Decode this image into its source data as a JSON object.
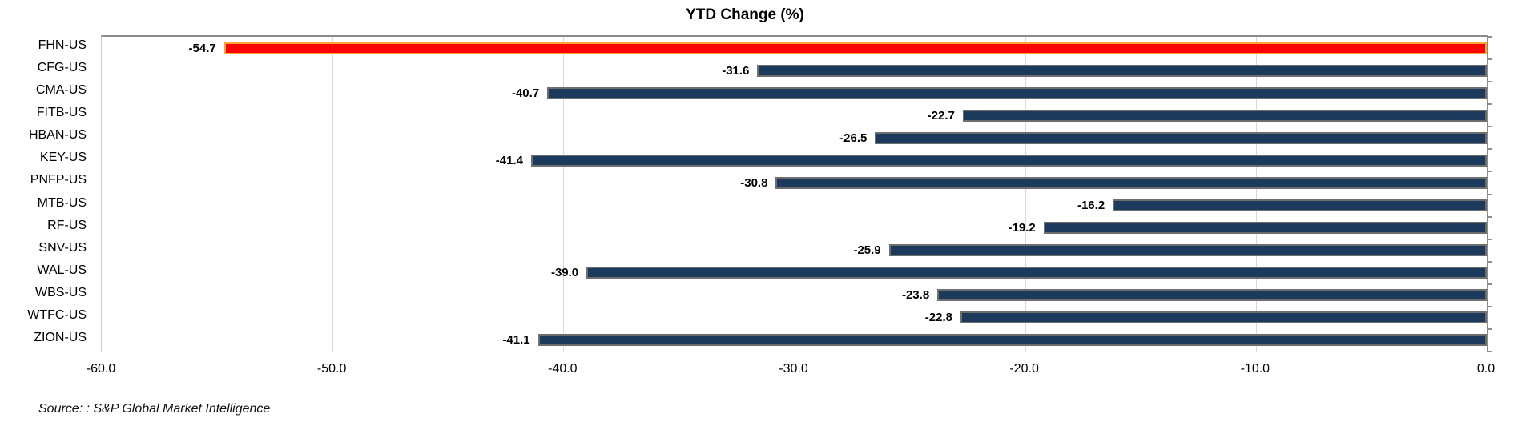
{
  "chart_data": {
    "type": "bar",
    "orientation": "horizontal",
    "title": "YTD Change (%)",
    "categories": [
      "FHN-US",
      "CFG-US",
      "CMA-US",
      "FITB-US",
      "HBAN-US",
      "KEY-US",
      "PNFP-US",
      "MTB-US",
      "RF-US",
      "SNV-US",
      "WAL-US",
      "WBS-US",
      "WTFC-US",
      "ZION-US"
    ],
    "values": [
      -54.7,
      -31.6,
      -40.7,
      -22.7,
      -26.5,
      -41.4,
      -30.8,
      -16.2,
      -19.2,
      -25.9,
      -39.0,
      -23.8,
      -22.8,
      -41.1
    ],
    "data_labels": [
      "-54.7",
      "-31.6",
      "-40.7",
      "-22.7",
      "-26.5",
      "-41.4",
      "-30.8",
      "-16.2",
      "-19.2",
      "-25.9",
      "-39.0",
      "-23.8",
      "-22.8",
      "-41.1"
    ],
    "xlim": [
      -60,
      0
    ],
    "x_tick_values": [
      -60,
      -50,
      -40,
      -30,
      -20,
      -10,
      0
    ],
    "x_tick_labels": [
      "-60.0",
      "-50.0",
      "-40.0",
      "-30.0",
      "-20.0",
      "-10.0",
      "0.0"
    ],
    "highlight_index": 0,
    "grid": "vertical-only",
    "legend": "none",
    "source": "Source: : S&P Global Market Intelligence",
    "colors": {
      "bar_fill": "#1c3a5c",
      "bar_border": "#6e6e6e",
      "highlight_fill": "#ff0000",
      "highlight_border": "#f9a53c",
      "gridline": "#d9d9d9",
      "axis_line": "#8c8c8c",
      "text": "#000000"
    }
  }
}
